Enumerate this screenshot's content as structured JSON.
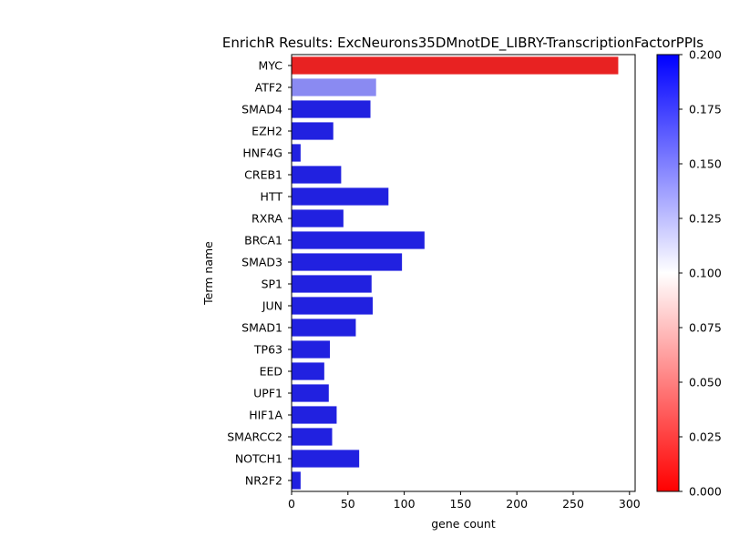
{
  "chart_data": {
    "type": "bar",
    "orientation": "horizontal",
    "title": "EnrichR Results: ExcNeurons35DMnotDE_LIBRY-TranscriptionFactorPPIs",
    "xlabel": "gene count",
    "ylabel": "Term name",
    "xlim": [
      0,
      305
    ],
    "xticks": [
      0,
      50,
      100,
      150,
      200,
      250,
      300
    ],
    "grid": false,
    "categories": [
      "MYC",
      "ATF2",
      "SMAD4",
      "EZH2",
      "HNF4G",
      "CREB1",
      "HTT",
      "RXRA",
      "BRCA1",
      "SMAD3",
      "SP1",
      "JUN",
      "SMAD1",
      "TP63",
      "EED",
      "UPF1",
      "HIF1A",
      "SMARCC2",
      "NOTCH1",
      "NR2F2"
    ],
    "values": [
      290,
      75,
      70,
      37,
      8,
      44,
      86,
      46,
      118,
      98,
      71,
      72,
      57,
      34,
      29,
      33,
      40,
      36,
      60,
      8
    ],
    "bar_colors": [
      "#e82222",
      "#8a8af2",
      "#2121e0",
      "#2121e0",
      "#2121e0",
      "#2121e0",
      "#2121e0",
      "#2121e0",
      "#2121e0",
      "#2121e0",
      "#2121e0",
      "#2121e0",
      "#2121e0",
      "#2121e0",
      "#2121e0",
      "#2121e0",
      "#2121e0",
      "#2121e0",
      "#2121e0",
      "#2121e0"
    ],
    "colorbar": {
      "range": [
        0.0,
        0.2
      ],
      "ticks": [
        "0.000",
        "0.025",
        "0.050",
        "0.075",
        "0.100",
        "0.125",
        "0.150",
        "0.175",
        "0.200"
      ],
      "colors": [
        "#ff0000",
        "#ffffff",
        "#0000ff"
      ]
    }
  }
}
